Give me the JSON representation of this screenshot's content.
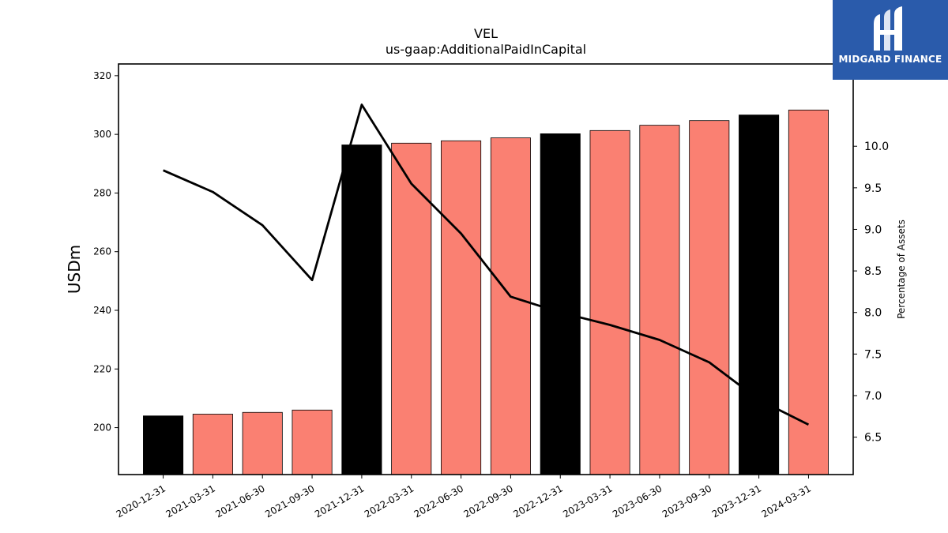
{
  "chart_data": {
    "type": "bar",
    "title": "VEL",
    "subtitle": "us-gaap:AdditionalPaidInCapital",
    "ylabel": "USDm",
    "y2label": "Percentage of Assets",
    "categories": [
      "2020-12-31",
      "2021-03-31",
      "2021-06-30",
      "2021-09-30",
      "2021-12-31",
      "2022-03-31",
      "2022-06-30",
      "2022-09-30",
      "2022-12-31",
      "2023-03-31",
      "2023-06-30",
      "2023-09-30",
      "2023-12-31",
      "2024-03-31"
    ],
    "series": [
      {
        "type": "bar",
        "axis": "left",
        "values": [
          204.0,
          204.6,
          205.2,
          206.0,
          296.4,
          297.0,
          297.8,
          298.8,
          300.2,
          301.3,
          303.1,
          304.7,
          306.6,
          308.3
        ],
        "colors": [
          "#000000",
          "#fa8072",
          "#fa8072",
          "#fa8072",
          "#000000",
          "#fa8072",
          "#fa8072",
          "#fa8072",
          "#000000",
          "#fa8072",
          "#fa8072",
          "#fa8072",
          "#000000",
          "#fa8072"
        ]
      },
      {
        "type": "line",
        "axis": "right",
        "color": "#000000",
        "values": [
          9.71,
          9.45,
          9.05,
          8.39,
          10.5,
          9.55,
          8.95,
          8.19,
          8.0,
          7.85,
          7.67,
          7.4,
          6.95,
          6.65
        ]
      }
    ],
    "ylim": [
      184,
      324
    ],
    "yticks": [
      200,
      220,
      240,
      260,
      280,
      300,
      320
    ],
    "y2lim": [
      6.05,
      10.99
    ],
    "y2ticks": [
      6.5,
      7.0,
      7.5,
      8.0,
      8.5,
      9.0,
      9.5,
      10.0
    ],
    "grid": false
  },
  "logo": {
    "text": "MIDGARD FINANCE",
    "color": "#2a5bab"
  }
}
